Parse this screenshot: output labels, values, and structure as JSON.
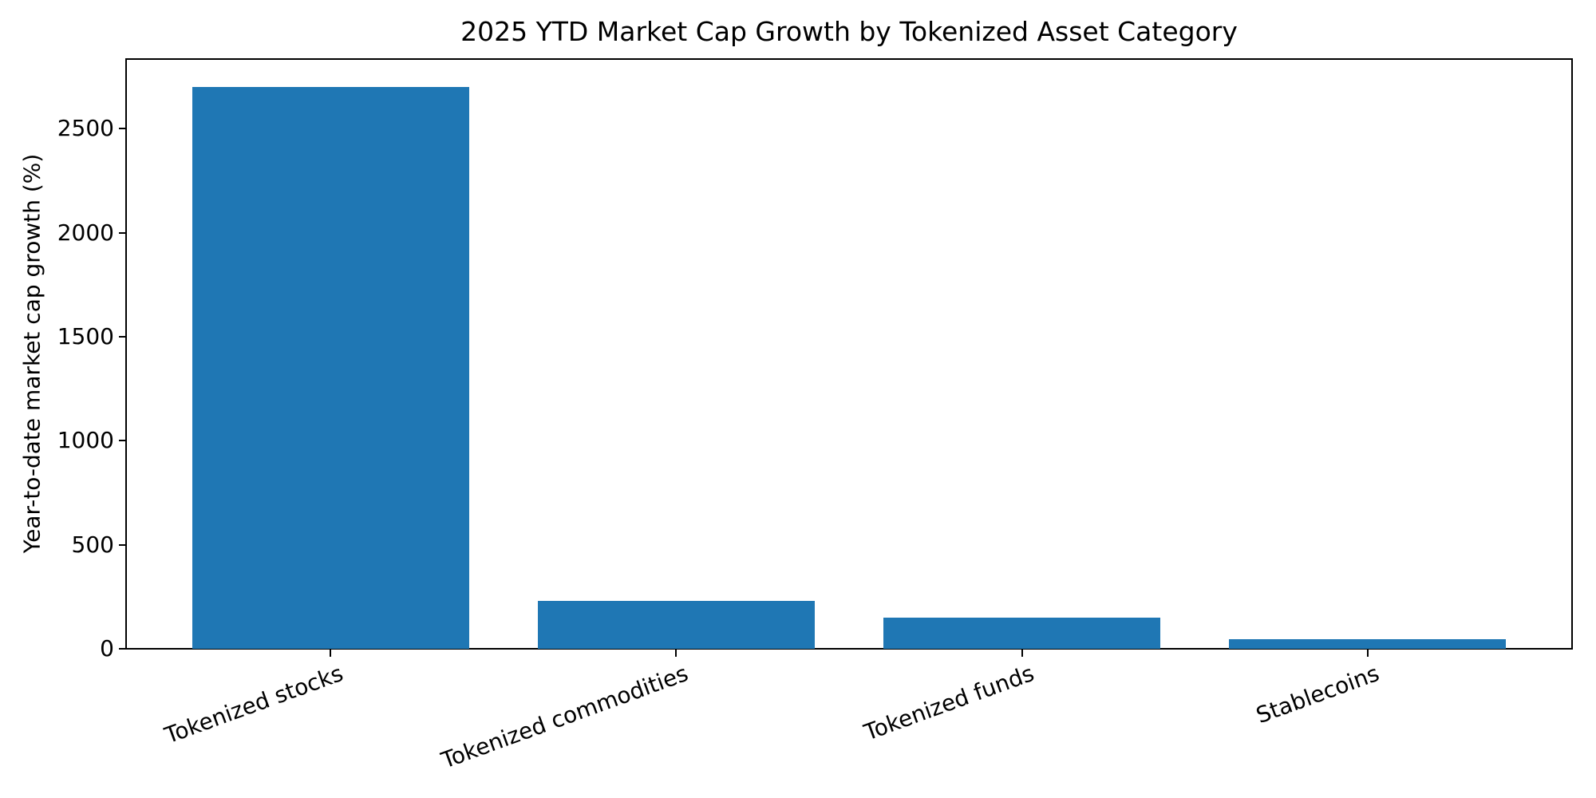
{
  "chart_data": {
    "type": "bar",
    "title": "2025 YTD Market Cap Growth by Tokenized Asset Category",
    "categories": [
      "Tokenized stocks",
      "Tokenized commodities",
      "Tokenized funds",
      "Stablecoins"
    ],
    "values": [
      2700,
      230,
      150,
      47
    ],
    "xlabel": "",
    "ylabel": "Year-to-date market cap growth (%)",
    "ylim": [
      0,
      2835
    ],
    "yticks": [
      0,
      500,
      1000,
      1500,
      2000,
      2500
    ],
    "x_tick_rotation_deg": 20,
    "bar_color": "#1f77b4",
    "axis_color": "#000000",
    "background_color": "#ffffff",
    "grid": false,
    "legend": null,
    "bar_width_fraction": 0.8
  }
}
